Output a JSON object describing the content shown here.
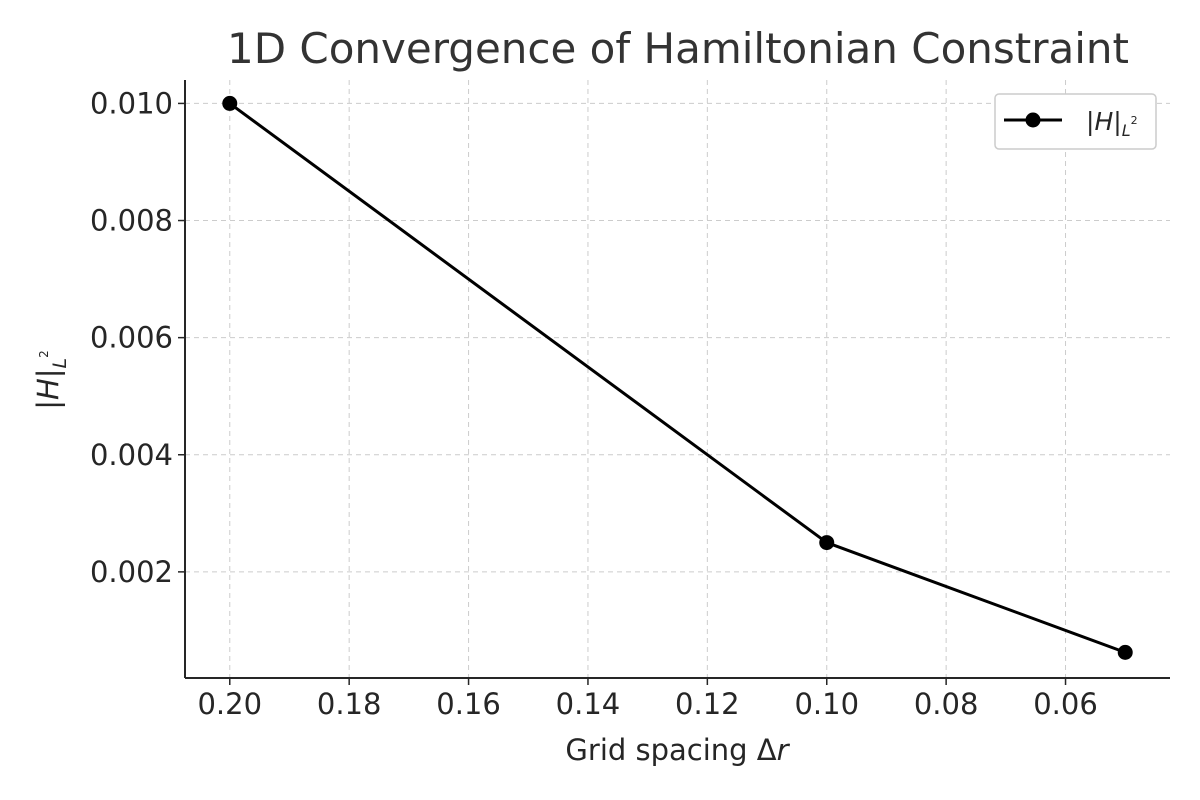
{
  "chart_data": {
    "type": "line",
    "title": "1D Convergence of Hamiltonian Constraint",
    "xlabel": "Grid spacing Δr",
    "xlabel_parts": {
      "text": "Grid spacing Δ",
      "var": "r"
    },
    "ylabel": "|H|_{L²}",
    "ylabel_parts": {
      "bar_open": "|",
      "var": "H",
      "bar_close": "|",
      "sub": "L",
      "sup": "2"
    },
    "x": [
      0.2,
      0.1,
      0.05
    ],
    "series": [
      {
        "name": "|H|_{L²}",
        "y": [
          0.01,
          0.0025,
          0.000625
        ]
      }
    ],
    "xlim": [
      0.2075,
      0.0425
    ],
    "ylim": [
      0.0001875,
      0.0104
    ],
    "x_inverted": true,
    "xticks": [
      0.2,
      0.18,
      0.16,
      0.14,
      0.12,
      0.1,
      0.08,
      0.06
    ],
    "xtick_labels": [
      "0.20",
      "0.18",
      "0.16",
      "0.14",
      "0.12",
      "0.10",
      "0.08",
      "0.06"
    ],
    "yticks": [
      0.002,
      0.004,
      0.006,
      0.008,
      0.01
    ],
    "ytick_labels": [
      "0.002",
      "0.004",
      "0.006",
      "0.008",
      "0.010"
    ],
    "grid": true,
    "legend_position": "top-right",
    "legend_parts": {
      "bar_open": "|",
      "var": "H",
      "bar_close": "|",
      "sub": "L",
      "sup": "2"
    },
    "line_color": "#000000",
    "grid_color": "#cccccc",
    "marker": "circle"
  }
}
